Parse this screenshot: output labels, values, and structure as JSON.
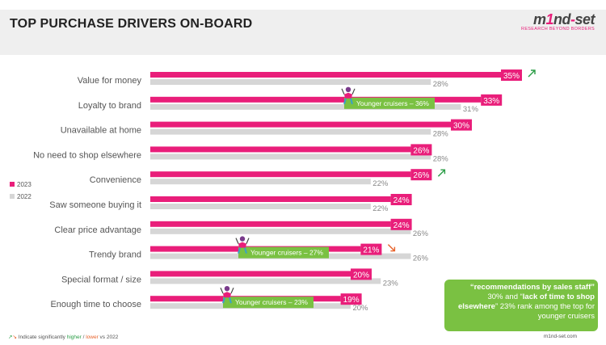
{
  "header": {
    "title": "TOP PURCHASE DRIVERS ON-BOARD"
  },
  "logo": {
    "pre": "m",
    "mark": "1",
    "mid": "nd",
    "end": "set",
    "tagline": "RESEARCH BEYOND BORDERS"
  },
  "colors": {
    "y2023": "#e91e7a",
    "y2022": "#d6d6d6",
    "higher": "#2a9d46",
    "lower": "#e8622a",
    "callout": "#7ac142"
  },
  "chart_data": {
    "type": "bar",
    "orientation": "horizontal",
    "categories": [
      "Value for money",
      "Loyalty to brand",
      "Unavailable at home",
      "No need to shop elsewhere",
      "Convenience",
      "Saw someone buying it",
      "Clear price advantage",
      "Trendy brand",
      "Special format / size",
      "Enough time to choose"
    ],
    "series": [
      {
        "name": "2023",
        "values": [
          35,
          33,
          30,
          26,
          26,
          24,
          24,
          21,
          20,
          19
        ],
        "labels": [
          "35%",
          "33%",
          "30%",
          "26%",
          "26%",
          "24%",
          "24%",
          "21%",
          "20%",
          "19%"
        ]
      },
      {
        "name": "2022",
        "values": [
          28,
          31,
          28,
          28,
          22,
          22,
          26,
          26,
          23,
          20
        ],
        "labels": [
          "28%",
          "31%",
          "28%",
          "28%",
          "22%",
          "22%",
          "26%",
          "26%",
          "23%",
          "20%"
        ]
      }
    ],
    "significance": [
      {
        "category": "Value for money",
        "direction": "higher",
        "icon": "arrow-up-right-icon"
      },
      {
        "category": "Convenience",
        "direction": "higher",
        "icon": "arrow-up-right-icon"
      },
      {
        "category": "Trendy brand",
        "direction": "lower",
        "icon": "arrow-down-right-icon"
      }
    ],
    "annotations": [
      {
        "category": "Loyalty to brand",
        "text": "Younger cruisers – 36%",
        "value": 36
      },
      {
        "category": "Trendy brand",
        "text": "Younger cruisers – 27%",
        "value": 27
      },
      {
        "category": "Enough time to choose",
        "text": "Younger cruisers – 23%",
        "value": 23
      }
    ],
    "legend": {
      "position": "left",
      "items": [
        "2023",
        "2022"
      ]
    }
  },
  "callout": {
    "q1": "“recommendations by sales staff”",
    "t1": " 30% and “",
    "q2": "lack of time to shop elsewhere",
    "t2": "” 23% rank among the top for younger cruisers"
  },
  "footer": {
    "note_prefix": "Indicate significantly ",
    "higher": "higher",
    "slash": " / ",
    "lower": "lower",
    "note_suffix": " vs 2022",
    "site": "m1nd-set.com"
  }
}
